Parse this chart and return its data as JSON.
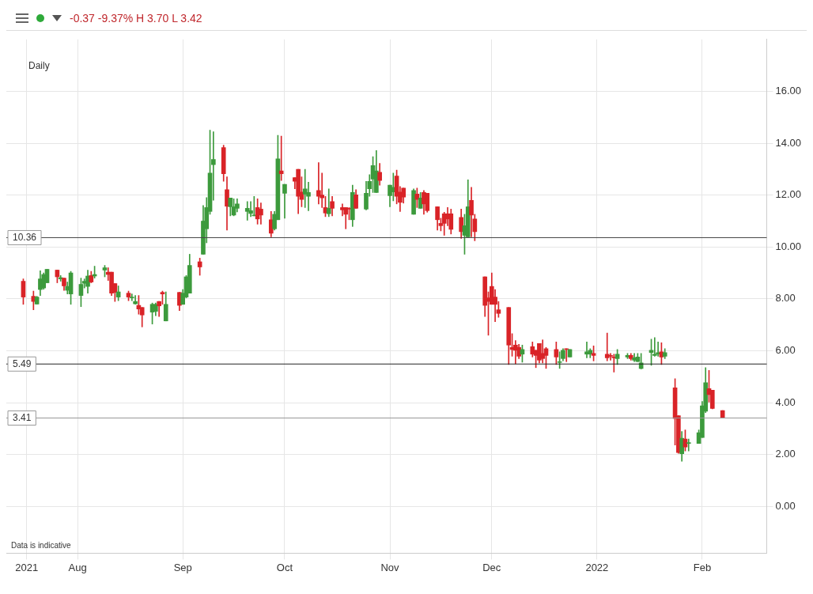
{
  "chart_data": {
    "type": "candlestick",
    "annotations": [
      "-0.37 -9.37% H 3.70 L 3.42",
      "Daily",
      "Data is indicative"
    ],
    "x": [
      "2021-07-16",
      "2021-07-19",
      "2021-07-20",
      "2021-07-21",
      "2021-07-22",
      "2021-07-23",
      "2021-07-26",
      "2021-07-27",
      "2021-07-28",
      "2021-07-29",
      "2021-07-30",
      "2021-08-02",
      "2021-08-03",
      "2021-08-04",
      "2021-08-05",
      "2021-08-06",
      "2021-08-09",
      "2021-08-10",
      "2021-08-11",
      "2021-08-12",
      "2021-08-13",
      "2021-08-16",
      "2021-08-17",
      "2021-08-18",
      "2021-08-19",
      "2021-08-20",
      "2021-08-23",
      "2021-08-24",
      "2021-08-25",
      "2021-08-26",
      "2021-08-27",
      "2021-08-31",
      "2021-09-01",
      "2021-09-02",
      "2021-09-03",
      "2021-09-06",
      "2021-09-07",
      "2021-09-08",
      "2021-09-09",
      "2021-09-10",
      "2021-09-13",
      "2021-09-14",
      "2021-09-15",
      "2021-09-16",
      "2021-09-17",
      "2021-09-20",
      "2021-09-21",
      "2021-09-22",
      "2021-09-23",
      "2021-09-24",
      "2021-09-27",
      "2021-09-28",
      "2021-09-29",
      "2021-09-30",
      "2021-10-01",
      "2021-10-04",
      "2021-10-05",
      "2021-10-06",
      "2021-10-07",
      "2021-10-08",
      "2021-10-11",
      "2021-10-12",
      "2021-10-13",
      "2021-10-14",
      "2021-10-15",
      "2021-10-18",
      "2021-10-19",
      "2021-10-20",
      "2021-10-21",
      "2021-10-22",
      "2021-10-25",
      "2021-10-26",
      "2021-10-27",
      "2021-10-28",
      "2021-10-29",
      "2021-11-01",
      "2021-11-02",
      "2021-11-03",
      "2021-11-04",
      "2021-11-05",
      "2021-11-08",
      "2021-11-09",
      "2021-11-10",
      "2021-11-11",
      "2021-11-12",
      "2021-11-15",
      "2021-11-16",
      "2021-11-17",
      "2021-11-18",
      "2021-11-19",
      "2021-11-22",
      "2021-11-23",
      "2021-11-24",
      "2021-11-25",
      "2021-11-26",
      "2021-11-29",
      "2021-11-30",
      "2021-12-01",
      "2021-12-02",
      "2021-12-03",
      "2021-12-06",
      "2021-12-07",
      "2021-12-08",
      "2021-12-09",
      "2021-12-10",
      "2021-12-13",
      "2021-12-14",
      "2021-12-15",
      "2021-12-16",
      "2021-12-17",
      "2021-12-20",
      "2021-12-21",
      "2021-12-22",
      "2021-12-23",
      "2021-12-24",
      "2021-12-29",
      "2021-12-30",
      "2021-12-31",
      "2022-01-04",
      "2022-01-05",
      "2022-01-06",
      "2022-01-07",
      "2022-01-10",
      "2022-01-11",
      "2022-01-12",
      "2022-01-13",
      "2022-01-14",
      "2022-01-17",
      "2022-01-18",
      "2022-01-19",
      "2022-01-20",
      "2022-01-21",
      "2022-01-24",
      "2022-01-25",
      "2022-01-26",
      "2022-01-27",
      "2022-01-28",
      "2022-01-31",
      "2022-02-01",
      "2022-02-02",
      "2022-02-03",
      "2022-02-04",
      "2022-02-07"
    ],
    "ohlc": [
      [
        8.68,
        8.77,
        7.79,
        8.07
      ],
      [
        8.1,
        8.3,
        7.58,
        7.9
      ],
      [
        7.8,
        8.1,
        7.8,
        8.07
      ],
      [
        8.36,
        9.08,
        8.13,
        8.77
      ],
      [
        8.42,
        9.0,
        8.37,
        8.94
      ],
      [
        8.62,
        9.14,
        8.62,
        9.14
      ],
      [
        9.11,
        9.11,
        8.62,
        8.85
      ],
      [
        8.77,
        8.9,
        8.68,
        8.82
      ],
      [
        8.8,
        8.8,
        8.33,
        8.5
      ],
      [
        8.33,
        8.65,
        8.19,
        8.48
      ],
      [
        8.19,
        9.06,
        7.79,
        9.0
      ],
      [
        8.13,
        8.8,
        7.7,
        8.56
      ],
      [
        8.6,
        8.77,
        8.42,
        8.68
      ],
      [
        8.48,
        9.11,
        8.22,
        8.88
      ],
      [
        8.9,
        9.06,
        8.62,
        8.65
      ],
      [
        8.88,
        9.26,
        8.8,
        8.94
      ],
      [
        9.11,
        9.29,
        8.85,
        9.2
      ],
      [
        9.03,
        9.2,
        8.71,
        8.94
      ],
      [
        9.03,
        9.03,
        8.13,
        8.22
      ],
      [
        8.59,
        8.59,
        7.9,
        8.25
      ],
      [
        8.07,
        8.5,
        7.93,
        8.27
      ],
      [
        8.22,
        8.3,
        7.93,
        8.07
      ],
      [
        8.04,
        8.19,
        7.93,
        8.07
      ],
      [
        7.81,
        8.13,
        7.79,
        7.9
      ],
      [
        7.75,
        8.13,
        7.41,
        7.61
      ],
      [
        7.67,
        7.67,
        6.92,
        7.38
      ],
      [
        7.49,
        7.84,
        7.03,
        7.79
      ],
      [
        7.52,
        7.84,
        7.35,
        7.79
      ],
      [
        7.9,
        7.9,
        7.32,
        7.73
      ],
      [
        8.25,
        8.3,
        7.79,
        8.19
      ],
      [
        7.15,
        8.27,
        7.15,
        7.79
      ],
      [
        8.25,
        8.25,
        7.55,
        7.75
      ],
      [
        7.79,
        8.36,
        7.79,
        8.22
      ],
      [
        8.07,
        8.9,
        8.04,
        8.85
      ],
      [
        8.22,
        9.72,
        8.22,
        9.29
      ],
      [
        9.43,
        9.57,
        8.91,
        9.23
      ],
      [
        9.72,
        11.6,
        9.72,
        11.0
      ],
      [
        10.7,
        11.9,
        10.16,
        11.52
      ],
      [
        11.37,
        14.5,
        11.26,
        12.85
      ],
      [
        13.17,
        14.44,
        11.8,
        13.37
      ],
      [
        13.83,
        13.92,
        12.53,
        12.82
      ],
      [
        12.21,
        12.7,
        10.65,
        11.57
      ],
      [
        11.55,
        11.89,
        11.2,
        11.89
      ],
      [
        11.23,
        11.86,
        11.2,
        11.55
      ],
      [
        11.49,
        11.86,
        11.35,
        11.66
      ],
      [
        11.37,
        11.75,
        11.03,
        11.49
      ],
      [
        11.29,
        11.75,
        11.17,
        11.4
      ],
      [
        11.2,
        11.95,
        11.2,
        11.23
      ],
      [
        11.52,
        11.86,
        10.88,
        11.08
      ],
      [
        11.46,
        11.7,
        10.88,
        11.23
      ],
      [
        11.05,
        11.37,
        10.39,
        10.53
      ],
      [
        10.7,
        11.37,
        10.65,
        11.26
      ],
      [
        11.05,
        14.3,
        11.05,
        13.4
      ],
      [
        12.93,
        14.27,
        12.56,
        12.82
      ],
      [
        12.07,
        12.41,
        11.11,
        12.41
      ],
      [
        12.67,
        12.67,
        12.24,
        12.53
      ],
      [
        12.99,
        12.99,
        11.28,
        11.95
      ],
      [
        12.12,
        12.7,
        11.55,
        11.83
      ],
      [
        12.04,
        12.99,
        11.52,
        12.24
      ],
      [
        11.95,
        12.5,
        11.4,
        12.1
      ],
      [
        12.18,
        13.25,
        11.66,
        11.95
      ],
      [
        12.0,
        12.85,
        11.52,
        11.89
      ],
      [
        11.52,
        11.95,
        11.17,
        11.31
      ],
      [
        11.28,
        12.24,
        11.17,
        11.49
      ],
      [
        11.75,
        11.95,
        11.2,
        11.49
      ],
      [
        11.52,
        11.66,
        11.2,
        11.43
      ],
      [
        11.52,
        11.52,
        10.7,
        11.26
      ],
      [
        11.49,
        11.52,
        11.05,
        11.46
      ],
      [
        11.05,
        12.38,
        10.79,
        12.1
      ],
      [
        12.01,
        12.21,
        11.49,
        11.49
      ],
      [
        11.46,
        12.53,
        11.43,
        12.07
      ],
      [
        12.24,
        12.79,
        11.95,
        12.53
      ],
      [
        12.62,
        13.48,
        12.1,
        13.14
      ],
      [
        12.1,
        13.72,
        12.1,
        12.93
      ],
      [
        12.88,
        13.22,
        12.38,
        12.56
      ],
      [
        11.98,
        12.38,
        11.55,
        12.38
      ],
      [
        12.12,
        12.85,
        11.78,
        12.3
      ],
      [
        12.73,
        12.96,
        11.66,
        11.95
      ],
      [
        12.12,
        12.33,
        11.37,
        11.72
      ],
      [
        12.27,
        12.27,
        11.69,
        11.92
      ],
      [
        11.26,
        12.24,
        11.26,
        12.18
      ],
      [
        12.04,
        12.27,
        11.52,
        11.83
      ],
      [
        11.49,
        12.1,
        11.49,
        11.89
      ],
      [
        12.1,
        12.18,
        11.26,
        11.66
      ],
      [
        12.07,
        12.07,
        11.34,
        11.4
      ],
      [
        11.55,
        11.55,
        10.65,
        11.05
      ],
      [
        10.91,
        11.11,
        10.62,
        10.82
      ],
      [
        11.28,
        11.34,
        10.45,
        10.91
      ],
      [
        11.28,
        11.52,
        10.82,
        11.08
      ],
      [
        11.28,
        11.46,
        10.5,
        10.68
      ],
      [
        11.14,
        11.46,
        10.33,
        10.59
      ],
      [
        10.45,
        11.26,
        9.72,
        10.82
      ],
      [
        10.39,
        12.59,
        10.39,
        11.55
      ],
      [
        11.8,
        12.3,
        10.39,
        11.23
      ],
      [
        11.08,
        11.26,
        10.24,
        10.59
      ],
      [
        8.85,
        8.85,
        7.32,
        7.75
      ],
      [
        8.04,
        8.27,
        6.6,
        7.9
      ],
      [
        8.48,
        9.0,
        7.79,
        7.79
      ],
      [
        8.07,
        8.36,
        7.12,
        7.79
      ],
      [
        7.58,
        7.9,
        7.29,
        7.44
      ],
      [
        7.67,
        7.67,
        5.47,
        6.22
      ],
      [
        6.13,
        6.66,
        5.79,
        6.05
      ],
      [
        6.22,
        6.39,
        5.5,
        6.02
      ],
      [
        6.13,
        6.25,
        5.7,
        5.79
      ],
      [
        5.87,
        6.22,
        5.56,
        6.05
      ],
      [
        6.16,
        6.34,
        5.76,
        5.87
      ],
      [
        6.02,
        6.02,
        5.35,
        5.82
      ],
      [
        6.28,
        6.28,
        5.53,
        5.64
      ],
      [
        5.9,
        6.42,
        5.53,
        5.7
      ],
      [
        6.08,
        6.13,
        5.32,
        5.82
      ],
      [
        6.05,
        6.34,
        5.47,
        5.76
      ],
      [
        5.58,
        5.96,
        5.32,
        5.58
      ],
      [
        5.7,
        6.08,
        5.61,
        6.02
      ],
      [
        6.08,
        6.08,
        5.58,
        6.05
      ],
      [
        5.76,
        6.05,
        5.76,
        6.05
      ],
      [
        5.87,
        6.34,
        5.73,
        5.96
      ],
      [
        5.87,
        6.08,
        5.73,
        6.02
      ],
      [
        5.9,
        6.19,
        5.61,
        5.82
      ],
      [
        5.87,
        6.68,
        5.61,
        5.73
      ],
      [
        5.82,
        5.9,
        5.64,
        5.79
      ],
      [
        5.76,
        5.87,
        5.18,
        5.73
      ],
      [
        5.7,
        6.05,
        5.47,
        5.87
      ],
      [
        5.76,
        5.9,
        5.7,
        5.82
      ],
      [
        5.82,
        5.9,
        5.64,
        5.7
      ],
      [
        5.64,
        5.9,
        5.58,
        5.73
      ],
      [
        5.58,
        5.9,
        5.58,
        5.76
      ],
      [
        5.32,
        5.9,
        5.3,
        5.53
      ],
      [
        5.93,
        6.45,
        5.44,
        6.02
      ],
      [
        5.82,
        6.51,
        5.79,
        5.87
      ],
      [
        5.87,
        6.34,
        5.79,
        5.93
      ],
      [
        5.96,
        6.31,
        5.47,
        5.76
      ],
      [
        5.79,
        6.08,
        5.7,
        5.93
      ],
      [
        4.57,
        4.92,
        2.37,
        3.39
      ],
      [
        3.5,
        3.5,
        2.05,
        2.08
      ],
      [
        2.03,
        2.89,
        1.74,
        2.63
      ],
      [
        2.6,
        2.95,
        2.14,
        2.29
      ],
      [
        2.43,
        2.6,
        2.14,
        2.46
      ],
      [
        2.43,
        2.95,
        2.43,
        2.84
      ],
      [
        2.66,
        4.05,
        2.66,
        3.88
      ],
      [
        3.67,
        5.35,
        3.62,
        4.77
      ],
      [
        4.54,
        5.24,
        4.02,
        4.31
      ],
      [
        4.48,
        4.48,
        3.76,
        3.78
      ],
      [
        3.7,
        3.7,
        3.41,
        3.41
      ]
    ],
    "xlim": [
      "2021-07-11",
      "2022-02-20"
    ],
    "xticks": [
      {
        "value": "2021-07-17",
        "label": "2021"
      },
      {
        "value": "2021-08-01",
        "label": "Aug"
      },
      {
        "value": "2021-09-01",
        "label": "Sep"
      },
      {
        "value": "2021-10-01",
        "label": "Oct"
      },
      {
        "value": "2021-11-01",
        "label": "Nov"
      },
      {
        "value": "2021-12-01",
        "label": "Dec"
      },
      {
        "value": "2022-01-01",
        "label": "2022"
      },
      {
        "value": "2022-02-01",
        "label": "Feb"
      }
    ],
    "ylim": [
      -1.8,
      18
    ],
    "yticks": [
      {
        "value": 0,
        "label": "0.00"
      },
      {
        "value": 2,
        "label": "2.00"
      },
      {
        "value": 4,
        "label": "4.00"
      },
      {
        "value": 6,
        "label": "6.00"
      },
      {
        "value": 8,
        "label": "8.00"
      },
      {
        "value": 10,
        "label": "10.00"
      },
      {
        "value": 12,
        "label": "12.00"
      },
      {
        "value": 14,
        "label": "14.00"
      },
      {
        "value": 16,
        "label": "16.00"
      }
    ],
    "ref_lines": [
      {
        "axis": "y",
        "value": 10.36,
        "label": "10.36",
        "color": "#444444"
      },
      {
        "axis": "y",
        "value": 5.49,
        "label": "5.49",
        "color": "#222222"
      },
      {
        "axis": "y",
        "value": 3.41,
        "label": "3.41",
        "color": "#999999"
      }
    ],
    "grid": true,
    "legend": false
  }
}
